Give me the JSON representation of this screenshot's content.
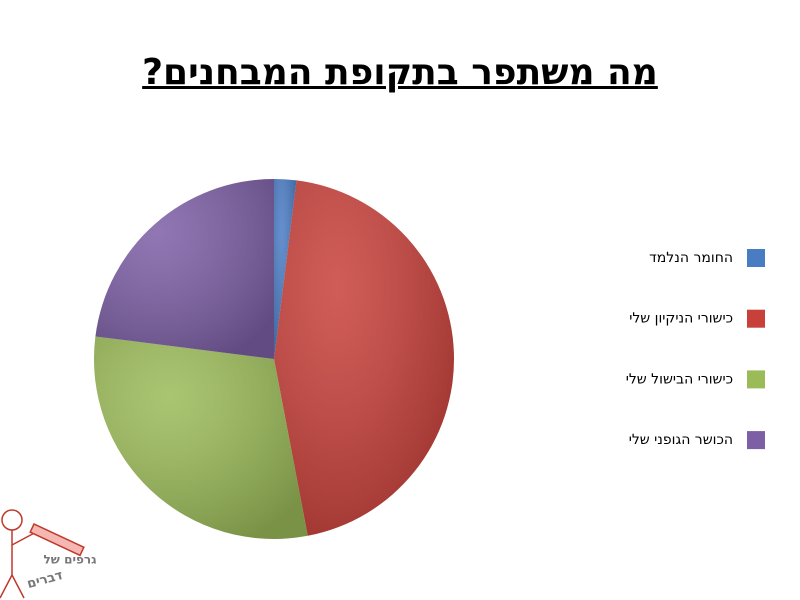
{
  "chart_data": {
    "type": "pie",
    "title": "מה משתפר בתקופת המבחנים?",
    "categories": [
      "החומר הנלמד",
      "כישורי הניקיון שלי",
      "כישורי הבישול שלי",
      "הכושר הגופני שלי"
    ],
    "values": [
      2,
      45,
      30,
      23
    ],
    "colors": [
      "#4a7cc4",
      "#c8403a",
      "#9bbb59",
      "#7d5fa6"
    ],
    "legend": "right"
  },
  "logo": {
    "line1": "גרפים של",
    "line2": "דברים"
  }
}
